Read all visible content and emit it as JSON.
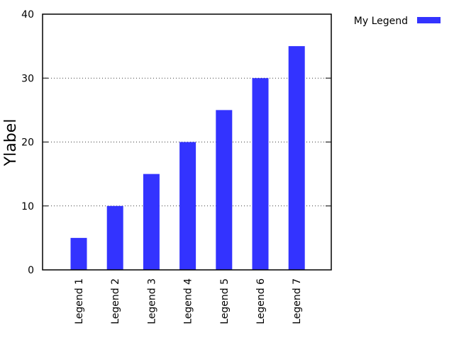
{
  "chart_data": {
    "type": "bar",
    "title": "",
    "xlabel": "",
    "ylabel": "Ylabel",
    "ylim": [
      0,
      40
    ],
    "yticks": [
      0,
      10,
      20,
      30,
      40
    ],
    "grid": "horizontal dotted",
    "legend_position": "top-right outside",
    "categories": [
      "Legend 1",
      "Legend 2",
      "Legend 3",
      "Legend 4",
      "Legend 5",
      "Legend 6",
      "Legend 7"
    ],
    "series": [
      {
        "name": "My Legend",
        "color": "#3333ff",
        "values": [
          5,
          10,
          15,
          20,
          25,
          30,
          35
        ]
      }
    ]
  }
}
